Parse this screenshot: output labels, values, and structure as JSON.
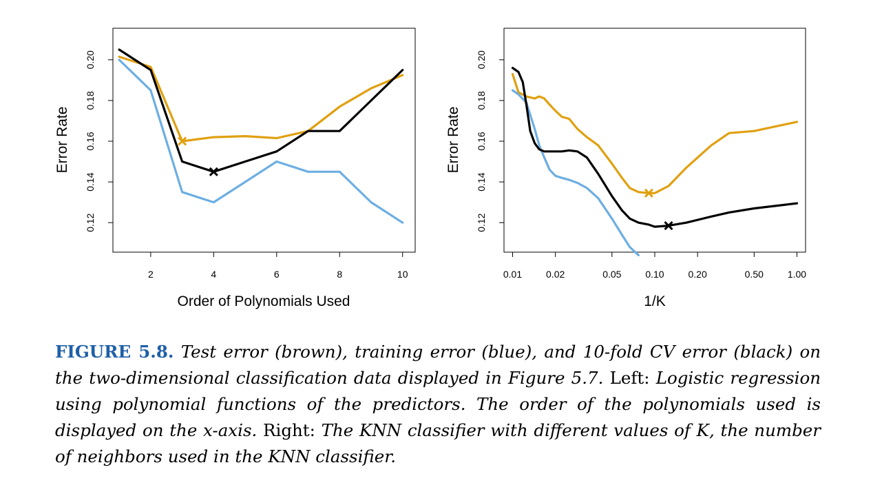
{
  "chart_data": [
    {
      "type": "line",
      "xlabel": "Order of Polynomials Used",
      "ylabel": "Error Rate",
      "xlim": [
        0.8,
        10.4
      ],
      "ylim": [
        0.1055,
        0.2155
      ],
      "xticks": [
        2,
        4,
        6,
        8,
        10
      ],
      "xtick_labels": [
        "2",
        "4",
        "6",
        "8",
        "10"
      ],
      "yticks": [
        0.12,
        0.14,
        0.16,
        0.18,
        0.2
      ],
      "ytick_labels": [
        "0.12",
        "0.14",
        "0.16",
        "0.18",
        "0.20"
      ],
      "x_scale": "linear",
      "grid": false,
      "series": [
        {
          "color": "#e0a010",
          "x": [
            1,
            2,
            3,
            4,
            5,
            6,
            7,
            8,
            9,
            10
          ],
          "values": [
            0.2015,
            0.1965,
            0.16,
            0.162,
            0.1625,
            0.1615,
            0.165,
            0.177,
            0.186,
            0.1925
          ]
        },
        {
          "color": "#6caee3",
          "x": [
            1,
            2,
            3,
            4,
            5,
            6,
            7,
            8,
            9,
            10
          ],
          "values": [
            0.2,
            0.185,
            0.135,
            0.13,
            0.14,
            0.15,
            0.145,
            0.145,
            0.13,
            0.12
          ]
        },
        {
          "color": "#000000",
          "x": [
            1,
            2,
            3,
            4,
            5,
            6,
            7,
            8,
            9,
            10
          ],
          "values": [
            0.205,
            0.195,
            0.15,
            0.145,
            0.15,
            0.155,
            0.165,
            0.165,
            0.18,
            0.195
          ]
        }
      ],
      "markers": [
        {
          "x": 3,
          "y": 0.16,
          "color": "#e0a010"
        },
        {
          "x": 4,
          "y": 0.145,
          "color": "#000000"
        }
      ]
    },
    {
      "type": "line",
      "xlabel": "1/K",
      "ylabel": "Error Rate",
      "xlim": [
        0.0087,
        1.15
      ],
      "ylim": [
        0.1055,
        0.2155
      ],
      "xticks": [
        0.01,
        0.02,
        0.05,
        0.1,
        0.2,
        0.5,
        1.0
      ],
      "xtick_labels": [
        "0.01",
        "0.02",
        "0.05",
        "0.10",
        "0.20",
        "0.50",
        "1.00"
      ],
      "yticks": [
        0.12,
        0.14,
        0.16,
        0.18,
        0.2
      ],
      "ytick_labels": [
        "0.12",
        "0.14",
        "0.16",
        "0.18",
        "0.20"
      ],
      "x_scale": "log",
      "grid": false,
      "series": [
        {
          "color": "#e0a010",
          "x": [
            0.01,
            0.011,
            0.0125,
            0.0143,
            0.0154,
            0.0167,
            0.0182,
            0.02,
            0.0222,
            0.025,
            0.0286,
            0.0333,
            0.04,
            0.05,
            0.0588,
            0.0667,
            0.0769,
            0.0909,
            0.1,
            0.125,
            0.1667,
            0.25,
            0.333,
            0.5,
            1.0
          ],
          "values": [
            0.193,
            0.184,
            0.182,
            0.181,
            0.182,
            0.181,
            0.178,
            0.175,
            0.172,
            0.171,
            0.166,
            0.162,
            0.158,
            0.149,
            0.142,
            0.137,
            0.135,
            0.1345,
            0.1345,
            0.138,
            0.147,
            0.158,
            0.164,
            0.165,
            0.1695
          ]
        },
        {
          "color": "#6caee3",
          "x": [
            0.01,
            0.011,
            0.0125,
            0.0143,
            0.0154,
            0.0167,
            0.0182,
            0.02,
            0.0222,
            0.025,
            0.0286,
            0.0333,
            0.04,
            0.05,
            0.0588,
            0.0667,
            0.0769
          ],
          "values": [
            0.185,
            0.183,
            0.179,
            0.166,
            0.158,
            0.152,
            0.146,
            0.143,
            0.142,
            0.141,
            0.1395,
            0.137,
            0.132,
            0.122,
            0.114,
            0.108,
            0.104
          ]
        },
        {
          "color": "#000000",
          "x": [
            0.01,
            0.011,
            0.0118,
            0.0125,
            0.0133,
            0.0143,
            0.0154,
            0.0167,
            0.0182,
            0.02,
            0.0222,
            0.025,
            0.0286,
            0.0333,
            0.04,
            0.05,
            0.0588,
            0.0667,
            0.0769,
            0.0909,
            0.1,
            0.125,
            0.1667,
            0.25,
            0.333,
            0.5,
            1.0
          ],
          "values": [
            0.196,
            0.194,
            0.189,
            0.178,
            0.165,
            0.159,
            0.156,
            0.155,
            0.155,
            0.155,
            0.155,
            0.1555,
            0.155,
            0.152,
            0.144,
            0.133,
            0.126,
            0.122,
            0.12,
            0.119,
            0.118,
            0.1185,
            0.12,
            0.123,
            0.125,
            0.127,
            0.1295
          ]
        }
      ],
      "markers": [
        {
          "x": 0.0909,
          "y": 0.1345,
          "color": "#e0a010"
        },
        {
          "x": 0.125,
          "y": 0.1185,
          "color": "#000000"
        }
      ]
    }
  ],
  "caption": {
    "label": "FIGURE 5.8.",
    "part1": "Test error (brown), training error (blue), and 10-fold CV error (black) on the two-dimensional classification data displayed in Figure 5.7.",
    "left_label": "Left:",
    "part2": "Logistic regression using polynomial functions of the predictors. The order of the polynomials used is displayed on the x-axis.",
    "right_label": "Right:",
    "part3": "The KNN classifier with different values of K, the number of neighbors used in the KNN classifier."
  }
}
